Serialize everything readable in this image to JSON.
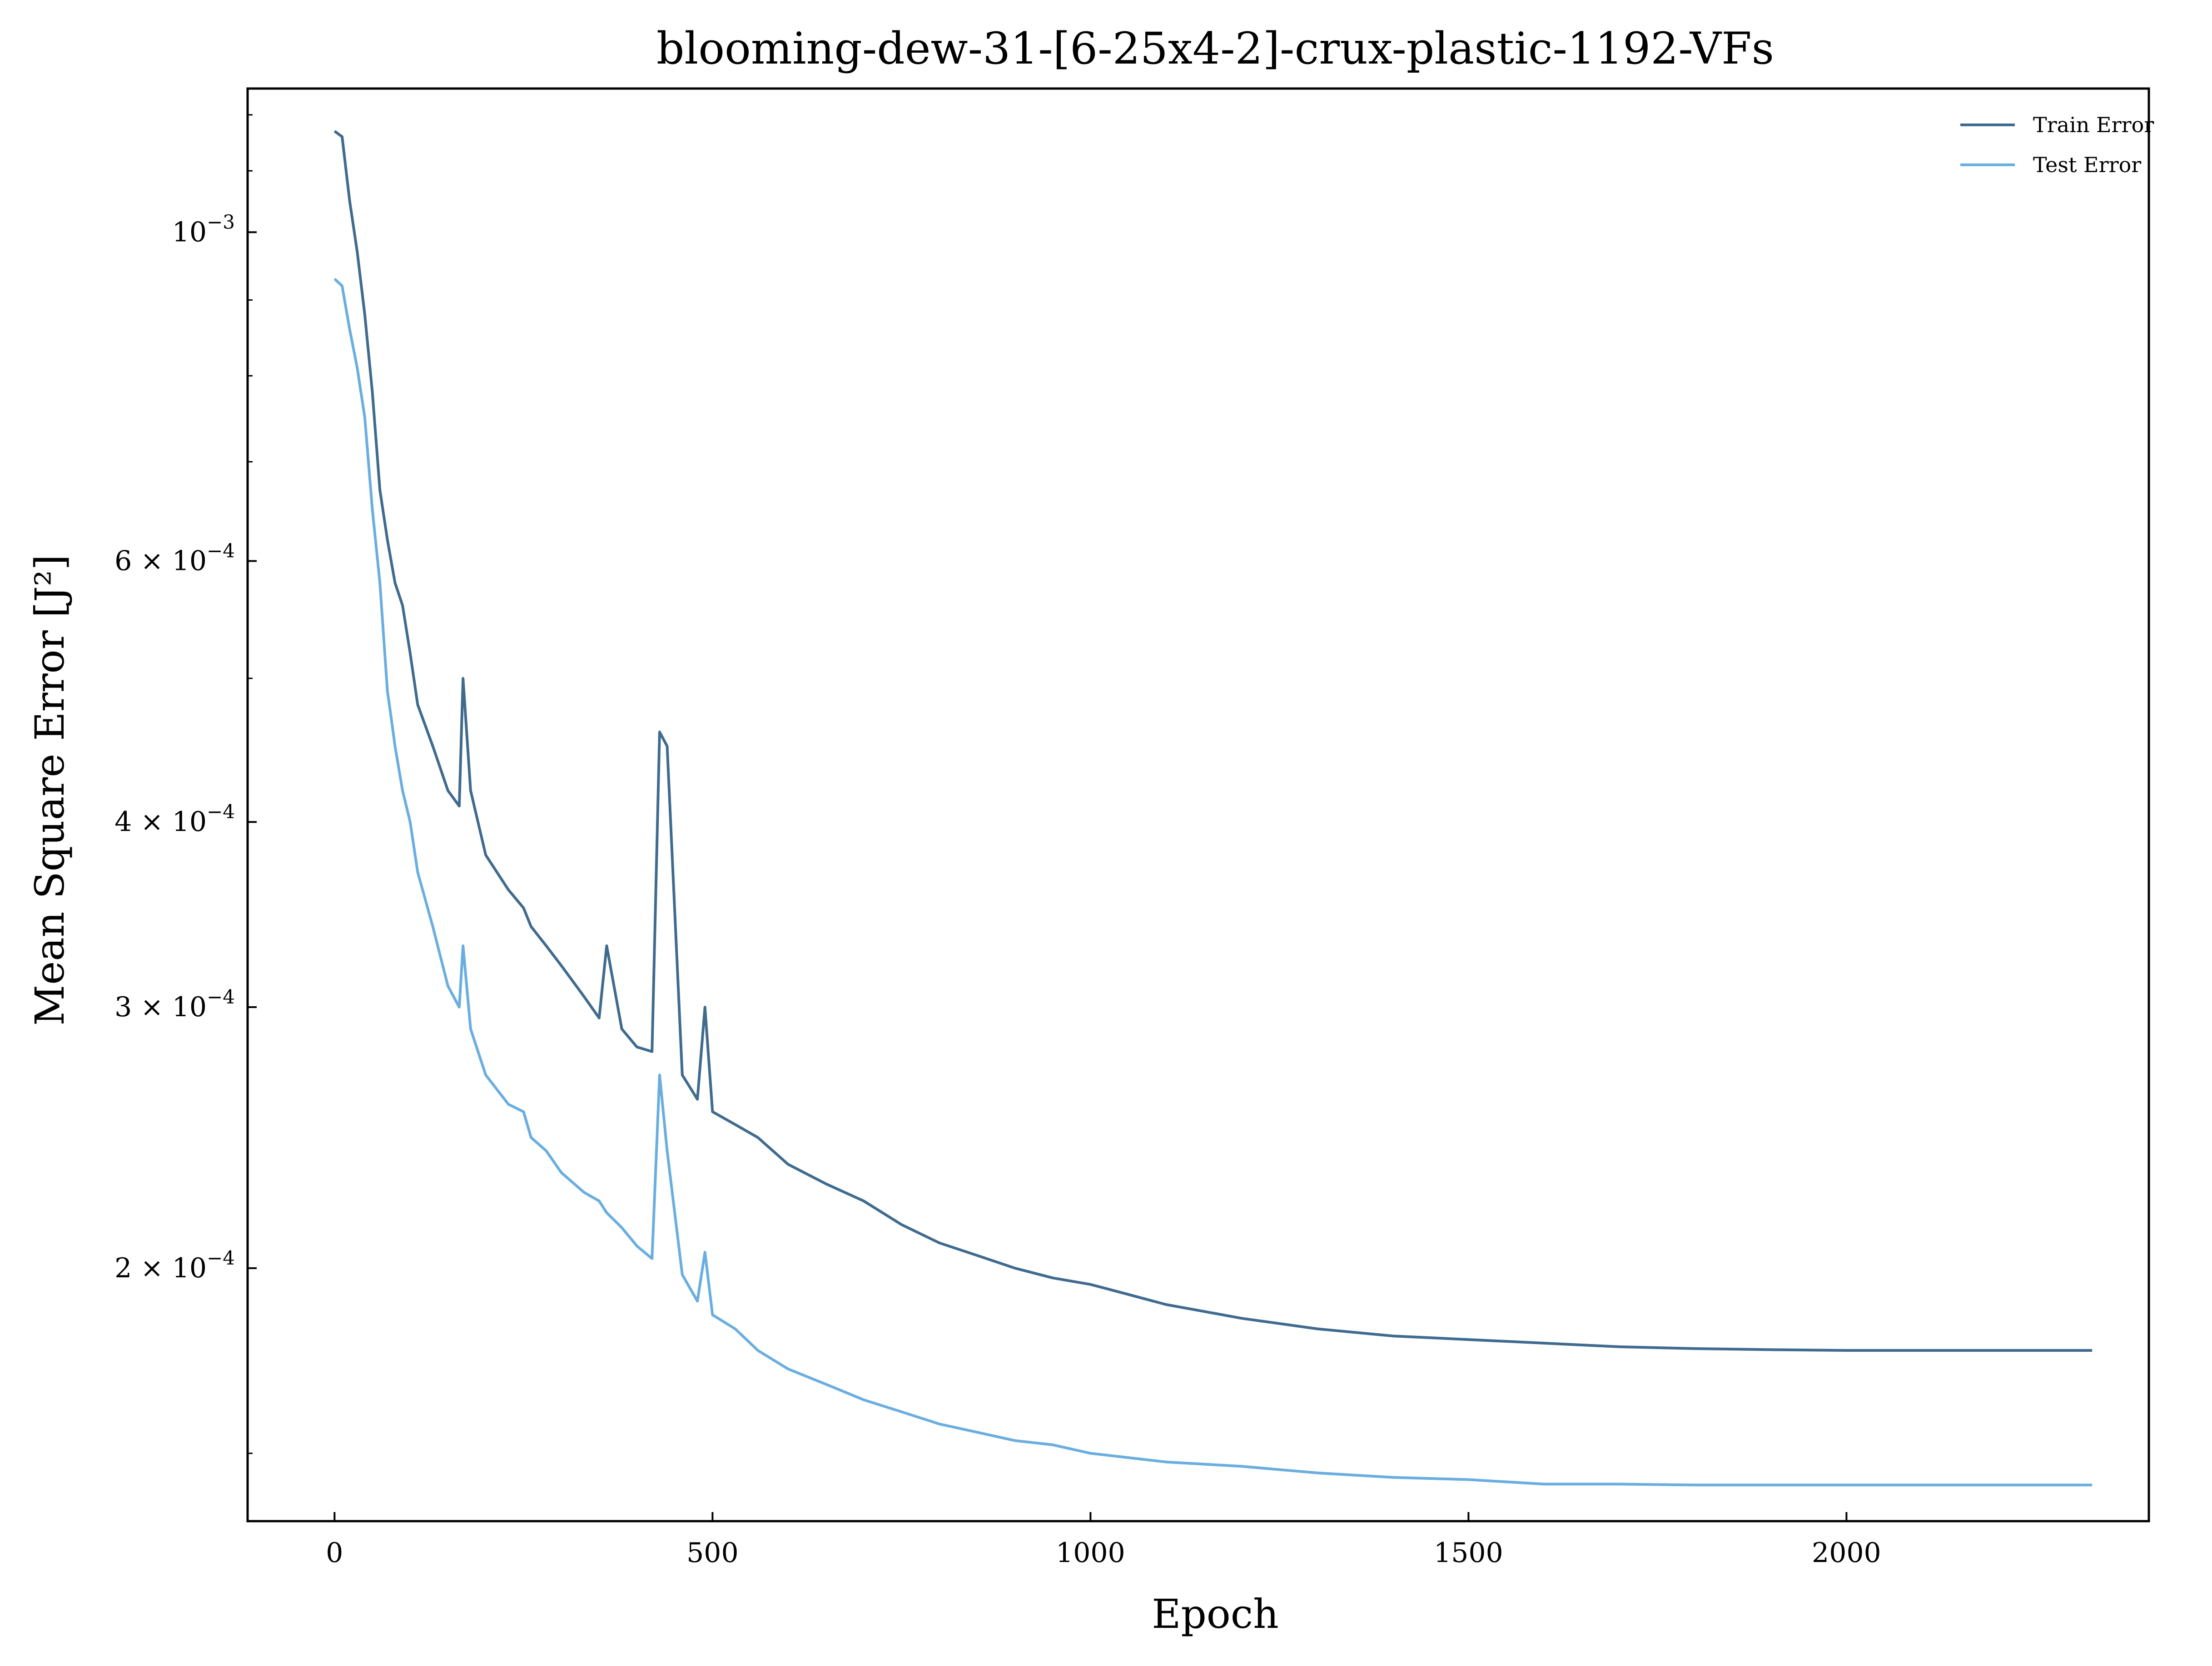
{
  "chart_data": {
    "type": "line",
    "title": "blooming-dew-31-[6-25x4-2]-crux-plastic-1192-VFs",
    "xlabel": "Epoch",
    "ylabel": "Mean Square Error [J²]",
    "xlim": [
      -115,
      2400
    ],
    "ylim": [
      0.000135,
      0.00125
    ],
    "yscale": "log",
    "grid": false,
    "legend_position": "top-right",
    "x_ticks": [
      {
        "value": 0,
        "label": "0"
      },
      {
        "value": 500,
        "label": "500"
      },
      {
        "value": 1000,
        "label": "1000"
      },
      {
        "value": 1500,
        "label": "1500"
      },
      {
        "value": 2000,
        "label": "2000"
      }
    ],
    "y_ticks": [
      {
        "value": 0.001,
        "mantissa": "",
        "exponent": "−3"
      },
      {
        "value": 0.0006,
        "mantissa": "6 × ",
        "exponent": "−4"
      },
      {
        "value": 0.0004,
        "mantissa": "4 × ",
        "exponent": "−4"
      },
      {
        "value": 0.0003,
        "mantissa": "3 × ",
        "exponent": "−4"
      },
      {
        "value": 0.0002,
        "mantissa": "2 × ",
        "exponent": "−4"
      }
    ],
    "series": [
      {
        "name": "Train Error",
        "color": "#3f6b8f",
        "x": [
          0,
          10,
          20,
          30,
          40,
          50,
          60,
          70,
          80,
          90,
          100,
          110,
          130,
          150,
          165,
          170,
          180,
          200,
          230,
          250,
          260,
          280,
          300,
          330,
          350,
          360,
          380,
          400,
          420,
          430,
          440,
          460,
          480,
          490,
          500,
          530,
          560,
          600,
          650,
          700,
          750,
          800,
          850,
          900,
          950,
          1000,
          1050,
          1100,
          1150,
          1200,
          1300,
          1400,
          1500,
          1600,
          1700,
          1800,
          1900,
          2000,
          2100,
          2200,
          2325
        ],
        "y": [
          0.00117,
          0.00116,
          0.00105,
          0.00097,
          0.00088,
          0.00078,
          0.00067,
          0.00062,
          0.00058,
          0.00056,
          0.00052,
          0.00048,
          0.00045,
          0.00042,
          0.00041,
          0.0005,
          0.00042,
          0.00038,
          0.00036,
          0.00035,
          0.00034,
          0.00033,
          0.00032,
          0.000305,
          0.000295,
          0.00033,
          0.00029,
          0.000282,
          0.00028,
          0.00046,
          0.00045,
          0.00027,
          0.00026,
          0.0003,
          0.000255,
          0.00025,
          0.000245,
          0.000235,
          0.000228,
          0.000222,
          0.000214,
          0.000208,
          0.000204,
          0.0002,
          0.000197,
          0.000195,
          0.000192,
          0.000189,
          0.000187,
          0.000185,
          0.000182,
          0.00018,
          0.000179,
          0.000178,
          0.000177,
          0.0001765,
          0.0001762,
          0.000176,
          0.000176,
          0.000176,
          0.000176
        ]
      },
      {
        "name": "Test Error",
        "color": "#6aaee0",
        "x": [
          0,
          10,
          20,
          30,
          40,
          50,
          60,
          70,
          75,
          80,
          90,
          100,
          110,
          130,
          150,
          165,
          170,
          180,
          200,
          230,
          250,
          260,
          280,
          300,
          330,
          350,
          360,
          380,
          400,
          420,
          430,
          440,
          460,
          480,
          490,
          500,
          530,
          560,
          600,
          650,
          700,
          750,
          800,
          850,
          900,
          950,
          1000,
          1050,
          1100,
          1150,
          1200,
          1300,
          1400,
          1500,
          1600,
          1700,
          1800,
          1900,
          2000,
          2100,
          2200,
          2325
        ],
        "y": [
          0.00093,
          0.00092,
          0.00086,
          0.00081,
          0.00075,
          0.00065,
          0.00058,
          0.00049,
          0.00047,
          0.00045,
          0.00042,
          0.0004,
          0.00037,
          0.00034,
          0.00031,
          0.0003,
          0.00033,
          0.00029,
          0.00027,
          0.000258,
          0.000255,
          0.000245,
          0.00024,
          0.000232,
          0.000225,
          0.000222,
          0.000218,
          0.000213,
          0.000207,
          0.000203,
          0.00027,
          0.00024,
          0.000198,
          0.00019,
          0.000205,
          0.000186,
          0.000182,
          0.000176,
          0.000171,
          0.000167,
          0.000163,
          0.00016,
          0.000157,
          0.000155,
          0.000153,
          0.000152,
          0.00015,
          0.000149,
          0.000148,
          0.0001475,
          0.000147,
          0.0001455,
          0.0001445,
          0.000144,
          0.000143,
          0.000143,
          0.0001428,
          0.0001428,
          0.0001428,
          0.0001428,
          0.0001428,
          0.0001428
        ]
      }
    ]
  }
}
